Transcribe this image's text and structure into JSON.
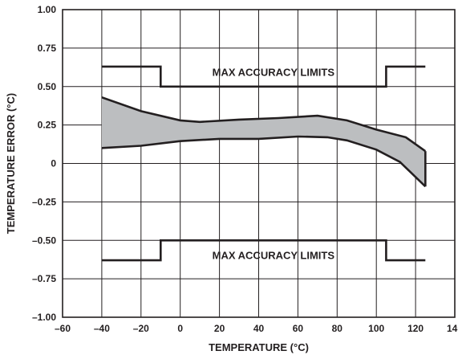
{
  "chart_data": {
    "type": "area",
    "title": "",
    "xlabel": "TEMPERATURE (°C)",
    "ylabel": "TEMPERATURE ERROR (°C)",
    "xlim": [
      -60,
      140
    ],
    "ylim": [
      -1.0,
      1.0
    ],
    "x_ticks": [
      -60,
      -40,
      -20,
      0,
      20,
      40,
      60,
      80,
      100,
      120,
      140
    ],
    "x_tick_labels": [
      "–60",
      "–40",
      "–20",
      "0",
      "20",
      "40",
      "60",
      "80",
      "100",
      "120",
      "140"
    ],
    "y_ticks": [
      1.0,
      0.75,
      0.5,
      0.25,
      0,
      -0.25,
      -0.5,
      -0.75,
      -1.0
    ],
    "y_tick_labels": [
      "1.00",
      "0.75",
      "0.50",
      "0.25",
      "0",
      "–0.25",
      "–0.50",
      "–0.75",
      "–1.00"
    ],
    "grid": true,
    "colors": {
      "line": "#231f20",
      "band_fill": "#bcbec0",
      "grid": "#231f20"
    },
    "series": [
      {
        "name": "MAX ACCURACY LIMITS",
        "role": "upper-limit",
        "x": [
          -40,
          -10,
          -10,
          105,
          105,
          125
        ],
        "y": [
          0.63,
          0.63,
          0.5,
          0.5,
          0.63,
          0.63
        ]
      },
      {
        "name": "MAX ACCURACY LIMITS",
        "role": "lower-limit",
        "x": [
          -40,
          -10,
          -10,
          105,
          105,
          125
        ],
        "y": [
          -0.63,
          -0.63,
          -0.5,
          -0.5,
          -0.63,
          -0.63
        ]
      },
      {
        "name": "",
        "role": "band-upper",
        "x": [
          -40,
          -20,
          0,
          10,
          30,
          50,
          70,
          85,
          100,
          115,
          125
        ],
        "y": [
          0.43,
          0.34,
          0.28,
          0.27,
          0.285,
          0.295,
          0.31,
          0.28,
          0.22,
          0.17,
          0.08
        ]
      },
      {
        "name": "",
        "role": "band-lower",
        "x": [
          -40,
          -20,
          0,
          20,
          40,
          60,
          75,
          85,
          100,
          112,
          125
        ],
        "y": [
          0.1,
          0.115,
          0.145,
          0.16,
          0.16,
          0.175,
          0.17,
          0.15,
          0.09,
          0.01,
          -0.15
        ]
      }
    ],
    "annotations": [
      {
        "text": "MAX ACCURACY LIMITS",
        "x": 47.5,
        "y": 0.595
      },
      {
        "text": "MAX ACCURACY LIMITS",
        "x": 47.5,
        "y": -0.595
      }
    ]
  }
}
